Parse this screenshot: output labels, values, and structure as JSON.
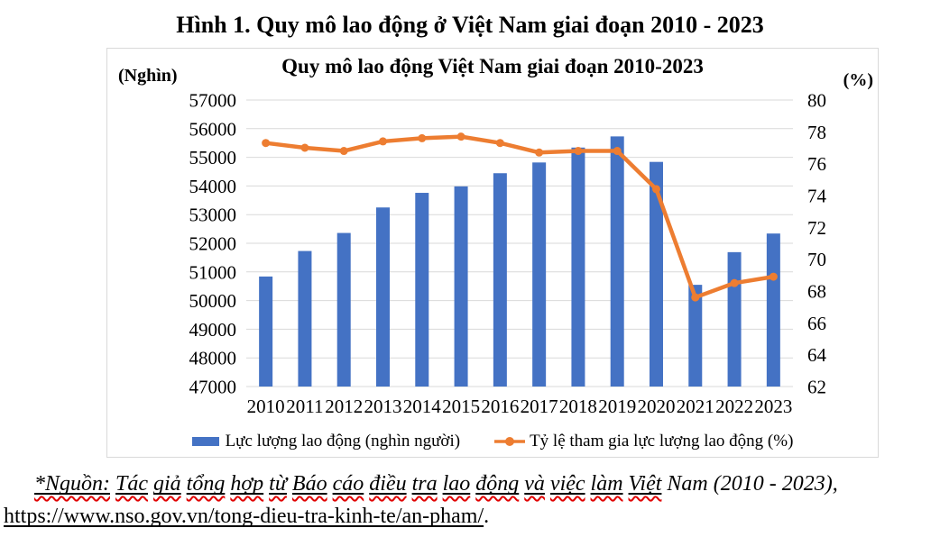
{
  "page": {
    "main_title": "Hình 1. Quy mô lao động ở Việt Nam giai đoạn 2010 - 2023"
  },
  "chart": {
    "title": "Quy mô lao động Việt Nam giai đoạn 2010-2023",
    "left_axis_unit": "(Nghìn)",
    "right_axis_unit": "(%)",
    "legend": {
      "bar_label": "Lực lượng lao động (nghìn người)",
      "line_label": "Tỷ lệ tham gia lực lượng lao động (%)"
    }
  },
  "chart_data": {
    "type": "bar",
    "subtype": "combo-bar-line-dual-axis",
    "title": "Quy mô lao động Việt Nam giai đoạn 2010-2023",
    "categories": [
      "2010",
      "2011",
      "2012",
      "2013",
      "2014",
      "2015",
      "2016",
      "2017",
      "2018",
      "2019",
      "2020",
      "2021",
      "2022",
      "2023"
    ],
    "series": [
      {
        "name": "Lực lượng lao động (nghìn người)",
        "type": "bar",
        "axis": "left",
        "color": "#4472C4",
        "values": [
          50840,
          51730,
          52360,
          53250,
          53760,
          53985,
          54445,
          54820,
          55340,
          55730,
          54840,
          50550,
          51690,
          52340
        ]
      },
      {
        "name": "Tỷ lệ tham gia lực lượng lao động (%)",
        "type": "line",
        "axis": "right",
        "color": "#ED7D31",
        "values": [
          77.3,
          77.0,
          76.8,
          77.4,
          77.6,
          77.7,
          77.3,
          76.7,
          76.8,
          76.8,
          74.4,
          67.6,
          68.5,
          68.9
        ]
      }
    ],
    "left_axis": {
      "label": "(Nghìn)",
      "min": 47000,
      "max": 57000,
      "step": 1000,
      "ticks": [
        "57000",
        "56000",
        "55000",
        "54000",
        "53000",
        "52000",
        "51000",
        "50000",
        "49000",
        "48000",
        "47000"
      ]
    },
    "right_axis": {
      "label": "(%)",
      "min": 62,
      "max": 80,
      "step": 2,
      "ticks": [
        "80",
        "78",
        "76",
        "74",
        "72",
        "70",
        "68",
        "66",
        "64",
        "62"
      ]
    },
    "grid": true,
    "gridline_color": "#D9D9D9",
    "legend_position": "bottom"
  },
  "source": {
    "line1_underlined": "*Nguồn: Tác giả tổng hợp từ Báo cáo điều tra lao động và việc làm Việt",
    "line1_plain": "Nam (2010 - 2023),",
    "line2_url": "https://www.nso.gov.vn/tong-dieu-tra-kinh-te/an-pham/",
    "line2_suffix": "."
  }
}
